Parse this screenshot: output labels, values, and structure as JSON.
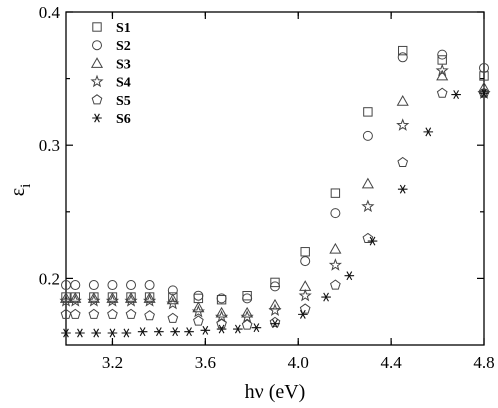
{
  "chart_data": {
    "type": "scatter",
    "xlabel": "hν (eV)",
    "ylabel_main": "ε",
    "ylabel_sub": "i",
    "xlim": [
      3.0,
      4.8
    ],
    "ylim": [
      0.15,
      0.4
    ],
    "xticks": [
      3.2,
      3.6,
      4.0,
      4.4,
      4.8
    ],
    "xtick_labels": [
      "3.2",
      "3.6",
      "4.0",
      "4.4",
      "4.8"
    ],
    "yticks": [
      0.2,
      0.3,
      0.4
    ],
    "ytick_labels": [
      "0.2",
      "0.3",
      "0.4"
    ],
    "legend_position": "top-left",
    "grid": false,
    "series": [
      {
        "name": "S1",
        "marker": "square",
        "x": [
          3.0,
          3.04,
          3.12,
          3.2,
          3.28,
          3.36,
          3.46,
          3.57,
          3.67,
          3.78,
          3.9,
          4.03,
          4.16,
          4.3,
          4.45,
          4.62,
          4.8
        ],
        "y": [
          0.186,
          0.186,
          0.186,
          0.186,
          0.186,
          0.186,
          0.186,
          0.185,
          0.184,
          0.187,
          0.197,
          0.22,
          0.264,
          0.325,
          0.371,
          0.364,
          0.352
        ]
      },
      {
        "name": "S2",
        "marker": "circle",
        "x": [
          3.0,
          3.04,
          3.12,
          3.2,
          3.28,
          3.36,
          3.46,
          3.57,
          3.67,
          3.78,
          3.9,
          4.03,
          4.16,
          4.3,
          4.45,
          4.62,
          4.8
        ],
        "y": [
          0.195,
          0.195,
          0.195,
          0.195,
          0.195,
          0.195,
          0.191,
          0.187,
          0.185,
          0.185,
          0.194,
          0.213,
          0.249,
          0.307,
          0.366,
          0.368,
          0.358
        ]
      },
      {
        "name": "S3",
        "marker": "triangle",
        "x": [
          3.0,
          3.04,
          3.12,
          3.2,
          3.28,
          3.36,
          3.46,
          3.57,
          3.67,
          3.78,
          3.9,
          4.03,
          4.16,
          4.3,
          4.45,
          4.62,
          4.8
        ],
        "y": [
          0.185,
          0.185,
          0.185,
          0.185,
          0.185,
          0.185,
          0.184,
          0.178,
          0.174,
          0.174,
          0.18,
          0.194,
          0.222,
          0.271,
          0.333,
          0.352,
          0.343
        ]
      },
      {
        "name": "S4",
        "marker": "star",
        "x": [
          3.0,
          3.04,
          3.12,
          3.2,
          3.28,
          3.36,
          3.46,
          3.57,
          3.67,
          3.78,
          3.9,
          4.03,
          4.16,
          4.3,
          4.45,
          4.62,
          4.8
        ],
        "y": [
          0.183,
          0.183,
          0.183,
          0.183,
          0.183,
          0.183,
          0.181,
          0.175,
          0.171,
          0.171,
          0.176,
          0.187,
          0.21,
          0.254,
          0.315,
          0.356,
          0.339
        ]
      },
      {
        "name": "S5",
        "marker": "pentagon",
        "x": [
          3.0,
          3.04,
          3.12,
          3.2,
          3.28,
          3.36,
          3.46,
          3.57,
          3.67,
          3.78,
          3.9,
          4.03,
          4.16,
          4.3,
          4.45,
          4.62,
          4.8
        ],
        "y": [
          0.173,
          0.173,
          0.173,
          0.173,
          0.173,
          0.172,
          0.17,
          0.168,
          0.166,
          0.165,
          0.167,
          0.177,
          0.195,
          0.23,
          0.287,
          0.339,
          0.339
        ]
      },
      {
        "name": "S6",
        "marker": "asterisk",
        "x": [
          3.0,
          3.06,
          3.13,
          3.2,
          3.26,
          3.33,
          3.4,
          3.47,
          3.53,
          3.6,
          3.67,
          3.74,
          3.82,
          3.9,
          4.02,
          4.12,
          4.22,
          4.32,
          4.45,
          4.56,
          4.68,
          4.8
        ],
        "y": [
          0.159,
          0.159,
          0.159,
          0.159,
          0.159,
          0.16,
          0.16,
          0.16,
          0.16,
          0.161,
          0.162,
          0.162,
          0.163,
          0.166,
          0.173,
          0.186,
          0.202,
          0.228,
          0.267,
          0.31,
          0.338,
          0.339
        ]
      }
    ]
  }
}
